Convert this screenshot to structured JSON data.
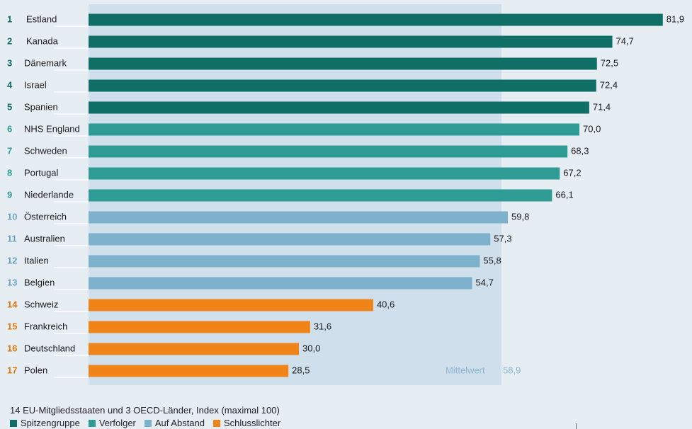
{
  "chart_data": {
    "type": "bar",
    "orientation": "horizontal",
    "title": "",
    "xlabel": "",
    "ylabel": "",
    "xlim": [
      0,
      82
    ],
    "grid": false,
    "legend_position": "bottom-left",
    "groups": [
      {
        "name": "Spitzengruppe",
        "color": "#0f6e66",
        "rank_color": "#0f6e66"
      },
      {
        "name": "Verfolger",
        "color": "#2e9c95",
        "rank_color": "#2e9c95"
      },
      {
        "name": "Auf Abstand",
        "color": "#7db1cc",
        "rank_color": "#6fa3c0"
      },
      {
        "name": "Schlusslichter",
        "color": "#f08418",
        "rank_color": "#e07a10"
      }
    ],
    "items": [
      {
        "rank": "1",
        "country": "Estland",
        "value": 81.9,
        "label": "81,9",
        "group": 0
      },
      {
        "rank": "2",
        "country": "Kanada",
        "value": 74.7,
        "label": "74,7",
        "group": 0
      },
      {
        "rank": "3",
        "country": "Dänemark",
        "value": 72.5,
        "label": "72,5",
        "group": 0
      },
      {
        "rank": "4",
        "country": "Israel",
        "value": 72.4,
        "label": "72,4",
        "group": 0
      },
      {
        "rank": "5",
        "country": "Spanien",
        "value": 71.4,
        "label": "71,4",
        "group": 0
      },
      {
        "rank": "6",
        "country": "NHS England",
        "value": 70.0,
        "label": "70,0",
        "group": 1
      },
      {
        "rank": "7",
        "country": "Schweden",
        "value": 68.3,
        "label": "68,3",
        "group": 1
      },
      {
        "rank": "8",
        "country": "Portugal",
        "value": 67.2,
        "label": "67,2",
        "group": 1
      },
      {
        "rank": "9",
        "country": "Niederlande",
        "value": 66.1,
        "label": "66,1",
        "group": 1
      },
      {
        "rank": "10",
        "country": "Österreich",
        "value": 59.8,
        "label": "59,8",
        "group": 2
      },
      {
        "rank": "11",
        "country": "Australien",
        "value": 57.3,
        "label": "57,3",
        "group": 2
      },
      {
        "rank": "12",
        "country": "Italien",
        "value": 55.8,
        "label": "55,8",
        "group": 2
      },
      {
        "rank": "13",
        "country": "Belgien",
        "value": 54.7,
        "label": "54,7",
        "group": 2
      },
      {
        "rank": "14",
        "country": "Schweiz",
        "value": 40.6,
        "label": "40,6",
        "group": 3
      },
      {
        "rank": "15",
        "country": "Frankreich",
        "value": 31.6,
        "label": "31,6",
        "group": 3
      },
      {
        "rank": "16",
        "country": "Deutschland",
        "value": 30.0,
        "label": "30,0",
        "group": 3
      },
      {
        "rank": "17",
        "country": "Polen",
        "value": 28.5,
        "label": "28,5",
        "group": 3
      }
    ],
    "mean": {
      "label": "Mittelwert",
      "value": 58.9,
      "value_label": "58,9"
    }
  },
  "footer": {
    "note": "14 EU-Mitgliedsstaaten und 3 OECD-Länder, Index (maximal 100)"
  }
}
